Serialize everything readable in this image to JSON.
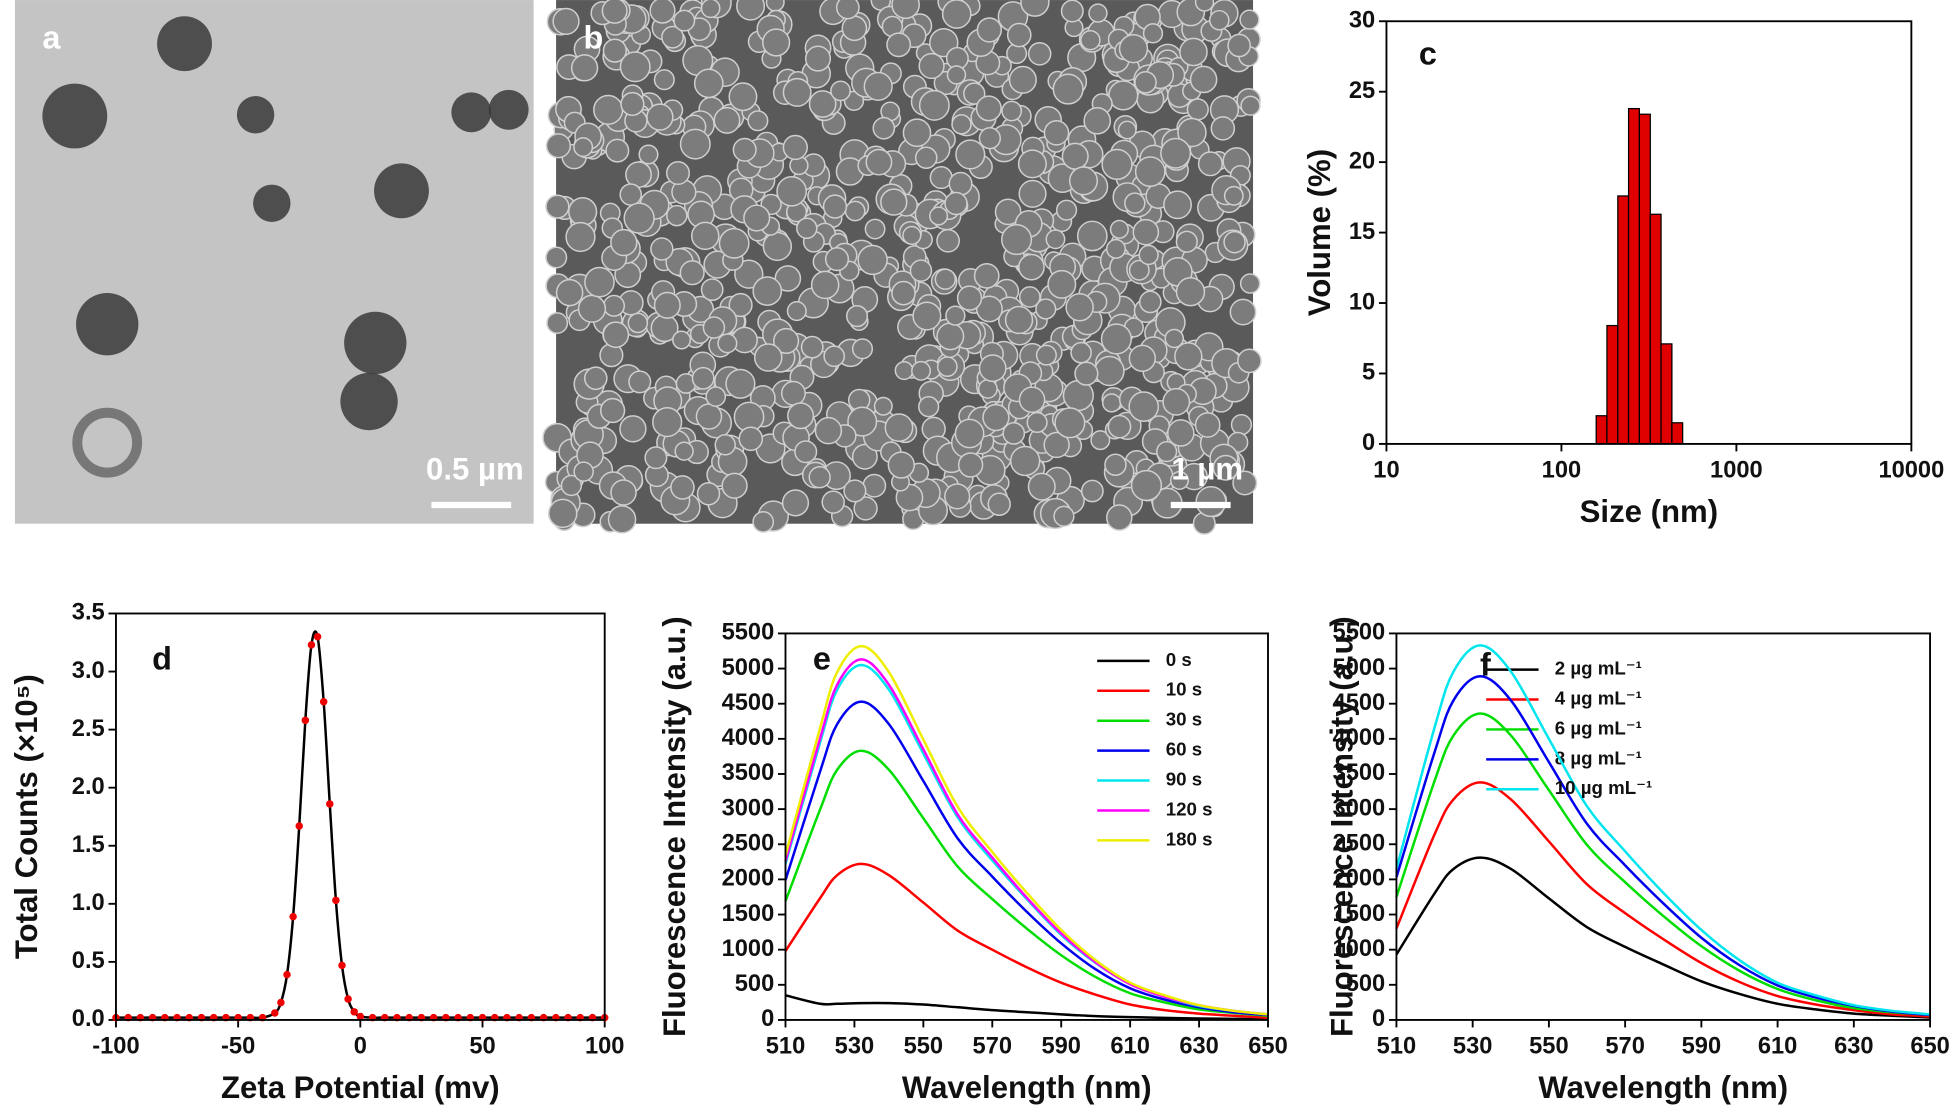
{
  "chart_data": [
    {
      "type": "image",
      "label": "a",
      "scale_bar": "0.5 µm",
      "color": "#c4c4c4"
    },
    {
      "type": "image",
      "label": "b",
      "scale_bar": "1 µm",
      "color": "#5a5a5a"
    },
    {
      "type": "histogram",
      "label": "c",
      "xlabel": "Size (nm)",
      "ylabel": "Volume (%)",
      "xscale": "log",
      "color": "#e00000",
      "bins": [
        158,
        182,
        210,
        242,
        279,
        322,
        371,
        428,
        493
      ],
      "values": [
        2,
        8.4,
        17.6,
        23.8,
        23.4,
        16.3,
        7.1,
        1.5
      ],
      "xlim": [
        10,
        10000
      ],
      "xticks": [
        10,
        100,
        1000,
        10000
      ],
      "ylim": [
        0,
        30
      ],
      "yticks": [
        0,
        5,
        10,
        15,
        20,
        25,
        30
      ]
    },
    {
      "type": "line",
      "label": "d",
      "xlabel": "Zeta Potential (mv)",
      "ylabel": "Total Counts (×10⁵)",
      "markers": true,
      "marker_color": "#ee0000",
      "x": [
        -100,
        -95,
        -90,
        -85,
        -80,
        -75,
        -70,
        -65,
        -60,
        -55,
        -50,
        -45,
        -40,
        -35,
        -32.5,
        -30,
        -27.5,
        -25,
        -22.5,
        -20,
        -17.5,
        -15,
        -12.5,
        -10,
        -7.5,
        -5,
        -2.5,
        0,
        5,
        10,
        15,
        20,
        25,
        30,
        35,
        40,
        45,
        50,
        55,
        60,
        65,
        70,
        75,
        80,
        85,
        90,
        95,
        100
      ],
      "series": [
        {
          "color": "#000000",
          "values": [
            0.02,
            0.02,
            0.02,
            0.02,
            0.02,
            0.02,
            0.02,
            0.02,
            0.02,
            0.02,
            0.02,
            0.02,
            0.02,
            0.06,
            0.15,
            0.39,
            0.89,
            1.67,
            2.58,
            3.23,
            3.3,
            2.74,
            1.86,
            1.03,
            0.47,
            0.18,
            0.07,
            0.03,
            0.02,
            0.02,
            0.02,
            0.02,
            0.02,
            0.02,
            0.02,
            0.02,
            0.02,
            0.02,
            0.02,
            0.02,
            0.02,
            0.02,
            0.02,
            0.02,
            0.02,
            0.02,
            0.02,
            0.02
          ]
        }
      ],
      "xlim": [
        -100,
        100
      ],
      "xticks": [
        -100,
        -50,
        0,
        50,
        100
      ],
      "ylim": [
        0,
        3.5
      ],
      "yticks": [
        {
          "value": 0,
          "label": "0.0"
        },
        0.5,
        {
          "value": 1,
          "label": "1.0"
        },
        1.5,
        {
          "value": 2,
          "label": "2.0"
        },
        2.5,
        {
          "value": 3,
          "label": "3.0"
        },
        3.5
      ]
    },
    {
      "type": "line",
      "label": "e",
      "xlabel": "Wavelength (nm)",
      "ylabel": "Fluorescence Intensity (a.u.)",
      "x": [
        510,
        520,
        525,
        532,
        540,
        550,
        560,
        570,
        580,
        590,
        600,
        610,
        620,
        630,
        640,
        650
      ],
      "series": [
        {
          "name": "0 s",
          "color": "#000000",
          "values": [
            350,
            230,
            230,
            240,
            240,
            220,
            180,
            140,
            110,
            80,
            55,
            40,
            30,
            20,
            15,
            10
          ]
        },
        {
          "name": "10 s",
          "color": "#ff0000",
          "values": [
            980,
            1730,
            2060,
            2220,
            2060,
            1670,
            1270,
            1000,
            750,
            530,
            360,
            220,
            140,
            90,
            60,
            30
          ]
        },
        {
          "name": "30 s",
          "color": "#00dd00",
          "values": [
            1690,
            2990,
            3560,
            3830,
            3560,
            2870,
            2180,
            1720,
            1300,
            920,
            610,
            380,
            250,
            150,
            100,
            60
          ]
        },
        {
          "name": "60 s",
          "color": "#0000ee",
          "values": [
            1990,
            3530,
            4210,
            4530,
            4210,
            3400,
            2580,
            2040,
            1540,
            1090,
            720,
            450,
            290,
            180,
            110,
            70
          ]
        },
        {
          "name": "90 s",
          "color": "#00e5ee",
          "values": [
            2220,
            3940,
            4700,
            5050,
            4700,
            3790,
            2880,
            2270,
            1720,
            1210,
            810,
            510,
            330,
            200,
            130,
            80
          ]
        },
        {
          "name": "120 s",
          "color": "#ff00ff",
          "values": [
            2260,
            4000,
            4770,
            5130,
            4770,
            3850,
            2920,
            2310,
            1740,
            1230,
            820,
            510,
            330,
            210,
            130,
            80
          ]
        },
        {
          "name": "180 s",
          "color": "#eeee00",
          "values": [
            2340,
            4150,
            4950,
            5320,
            4950,
            3990,
            3030,
            2390,
            1810,
            1280,
            850,
            530,
            350,
            210,
            130,
            80
          ]
        }
      ],
      "xlim": [
        510,
        650
      ],
      "xticks": [
        510,
        530,
        550,
        570,
        590,
        610,
        630,
        650
      ],
      "ylim": [
        0,
        5500
      ],
      "yticks": [
        0,
        500,
        1000,
        1500,
        2000,
        2500,
        3000,
        3500,
        4000,
        4500,
        5000,
        5500
      ]
    },
    {
      "type": "line",
      "label": "f",
      "xlabel": "Wavelength (nm)",
      "ylabel": "Fluorescence Intensity (a.u.)",
      "x": [
        510,
        520,
        525,
        532,
        540,
        550,
        560,
        570,
        580,
        590,
        600,
        610,
        620,
        630,
        640,
        650
      ],
      "series": [
        {
          "name": "2 µg mL⁻¹",
          "color": "#000000",
          "values": [
            930,
            1800,
            2150,
            2310,
            2150,
            1730,
            1320,
            1040,
            790,
            550,
            370,
            230,
            150,
            90,
            60,
            35
          ]
        },
        {
          "name": "4 µg mL⁻¹",
          "color": "#ff0000",
          "values": [
            1300,
            2640,
            3140,
            3380,
            3140,
            2540,
            1930,
            1520,
            1150,
            810,
            540,
            340,
            220,
            140,
            80,
            50
          ]
        },
        {
          "name": "6 µg mL⁻¹",
          "color": "#00dd00",
          "values": [
            1750,
            3400,
            4050,
            4360,
            4050,
            3270,
            2490,
            1960,
            1480,
            1050,
            700,
            440,
            280,
            170,
            110,
            70
          ]
        },
        {
          "name": "8 µg mL⁻¹",
          "color": "#0000ee",
          "values": [
            2030,
            3810,
            4550,
            4890,
            4550,
            3670,
            2790,
            2200,
            1660,
            1170,
            780,
            490,
            320,
            200,
            120,
            70
          ]
        },
        {
          "name": "10 µg mL⁻¹",
          "color": "#00e5ee",
          "values": [
            2150,
            4160,
            4960,
            5330,
            4960,
            4000,
            3040,
            2400,
            1810,
            1280,
            850,
            530,
            350,
            210,
            130,
            80
          ]
        }
      ],
      "xlim": [
        510,
        650
      ],
      "xticks": [
        510,
        530,
        550,
        570,
        590,
        610,
        630,
        650
      ],
      "ylim": [
        0,
        5500
      ],
      "yticks": [
        0,
        500,
        1000,
        1500,
        2000,
        2500,
        3000,
        3500,
        4000,
        4500,
        5000,
        5500
      ]
    }
  ]
}
